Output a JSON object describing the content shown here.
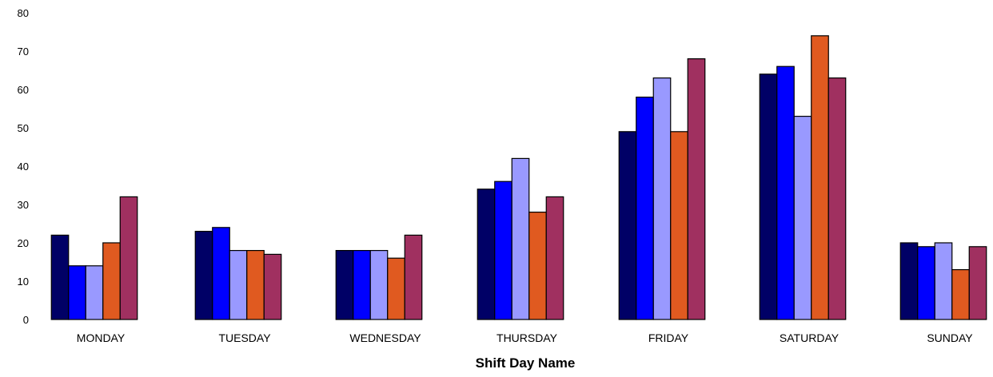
{
  "chart_data": {
    "type": "bar",
    "title": "",
    "xlabel": "Shift Day Name",
    "ylabel": "",
    "ylim": [
      0,
      80
    ],
    "yticks": [
      0,
      10,
      20,
      30,
      40,
      50,
      60,
      70,
      80
    ],
    "grid": false,
    "categories": [
      "MONDAY",
      "TUESDAY",
      "WEDNESDAY",
      "THURSDAY",
      "FRIDAY",
      "SATURDAY",
      "SUNDAY"
    ],
    "series": [
      {
        "color": "#000066",
        "values": [
          22,
          23,
          18,
          34,
          49,
          64,
          20
        ]
      },
      {
        "color": "#0000ff",
        "values": [
          14,
          24,
          18,
          36,
          58,
          66,
          19
        ]
      },
      {
        "color": "#9999ff",
        "values": [
          14,
          18,
          18,
          42,
          63,
          53,
          20
        ]
      },
      {
        "color": "#e05a20",
        "values": [
          20,
          18,
          16,
          28,
          49,
          74,
          13
        ]
      },
      {
        "color": "#a03060",
        "values": [
          32,
          17,
          22,
          32,
          68,
          63,
          19
        ]
      }
    ]
  }
}
